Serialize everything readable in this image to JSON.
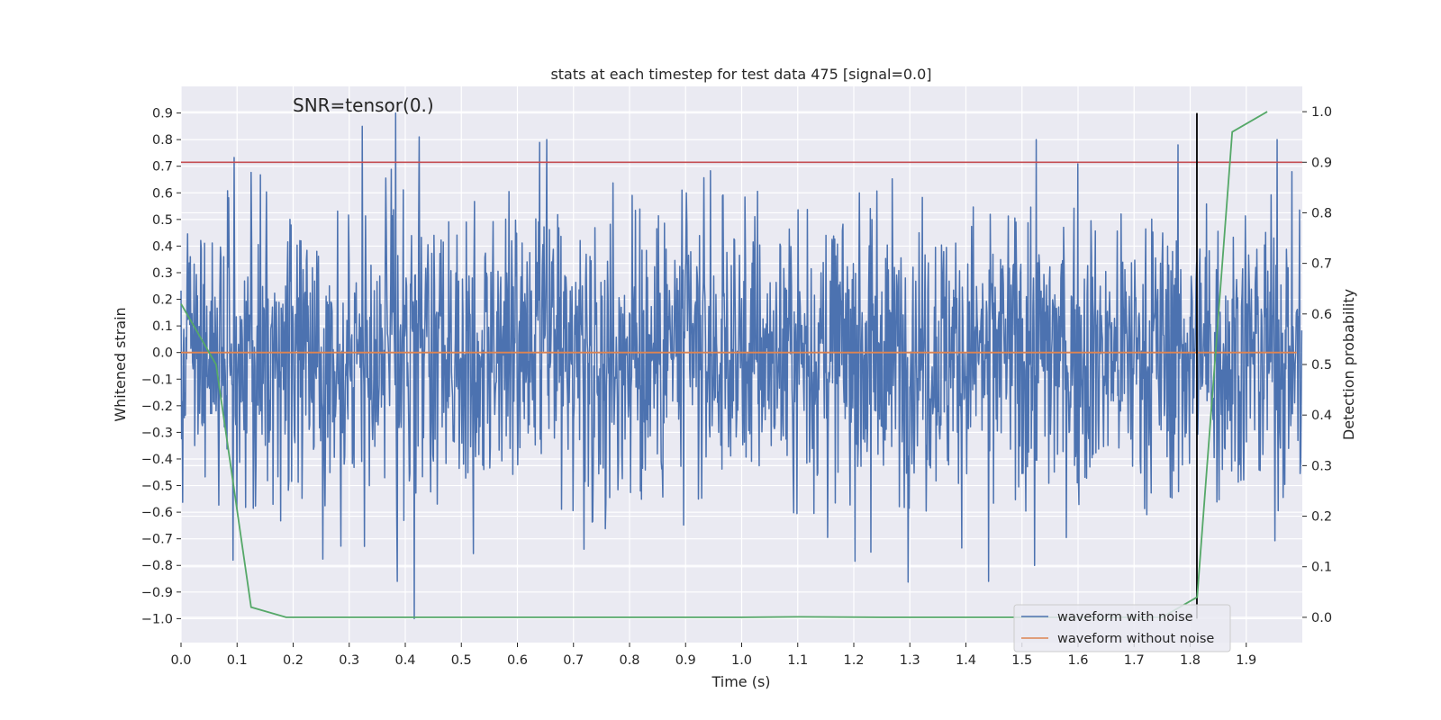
{
  "chart_data": {
    "type": "line",
    "title": "stats at each timestep for test data 475 [signal=0.0]",
    "xlabel": "Time (s)",
    "ylabel": "Whitened strain",
    "y2label": "Detection probability",
    "annotation": "SNR=tensor(0.)",
    "xlim": [
      0.0,
      2.0
    ],
    "ylim": [
      -1.09,
      1.0
    ],
    "y2lim": [
      -0.05,
      1.05
    ],
    "xticks": [
      "0.0",
      "0.1",
      "0.2",
      "0.3",
      "0.4",
      "0.5",
      "0.6",
      "0.7",
      "0.8",
      "0.9",
      "1.0",
      "1.1",
      "1.2",
      "1.3",
      "1.4",
      "1.5",
      "1.6",
      "1.7",
      "1.8",
      "1.9"
    ],
    "yticks": [
      "0.9",
      "0.8",
      "0.7",
      "0.6",
      "0.5",
      "0.4",
      "0.3",
      "0.2",
      "0.1",
      "0.0",
      "−0.1",
      "−0.2",
      "−0.3",
      "−0.4",
      "−0.5",
      "−0.6",
      "−0.7",
      "−0.8",
      "−0.9",
      "−1.0"
    ],
    "y2ticks": [
      "1.0",
      "0.9",
      "0.8",
      "0.7",
      "0.6",
      "0.5",
      "0.4",
      "0.3",
      "0.2",
      "0.1",
      "0.0"
    ],
    "grid": true,
    "legend_position": "lower-right",
    "threshold_line": {
      "y2": 0.9,
      "color": "#c44e52"
    },
    "marker_line": {
      "x": 1.812,
      "y_from": -1.0,
      "y_to": 0.9,
      "color": "#000000"
    },
    "series": [
      {
        "name": "waveform with noise",
        "color": "#4c72b0",
        "axis": "left",
        "n_points": 2048,
        "summary": {
          "mean": 0.0,
          "std": 0.27,
          "min": -1.0,
          "max": 0.9
        },
        "peaks": [
          {
            "x": 0.383,
            "y": 0.9
          },
          {
            "x": 0.323,
            "y": 0.85
          },
          {
            "x": 0.425,
            "y": 0.81
          },
          {
            "x": 0.652,
            "y": 0.8
          },
          {
            "x": 1.525,
            "y": 0.8
          },
          {
            "x": 1.955,
            "y": 0.8
          },
          {
            "x": 0.416,
            "y": -1.0
          },
          {
            "x": 0.386,
            "y": -0.86
          },
          {
            "x": 1.44,
            "y": -0.86
          },
          {
            "x": 1.522,
            "y": -0.8
          },
          {
            "x": 0.093,
            "y": -0.78
          },
          {
            "x": 1.23,
            "y": -0.75
          }
        ]
      },
      {
        "name": "waveform without noise",
        "color": "#dd8452",
        "axis": "left",
        "x": [
          0.0,
          1.99
        ],
        "y": [
          0.0,
          0.0
        ]
      },
      {
        "name": "detection probability",
        "color": "#55a868",
        "axis": "right",
        "x": [
          0.0,
          0.0625,
          0.125,
          0.1875,
          0.25,
          0.5,
          0.75,
          1.0,
          1.1,
          1.25,
          1.5,
          1.75,
          1.8125,
          1.875,
          1.9375
        ],
        "y": [
          0.62,
          0.5,
          0.02,
          0.0,
          0.0,
          0.0,
          0.0,
          0.0,
          0.001,
          0.0,
          0.0,
          0.0,
          0.04,
          0.96,
          1.0
        ]
      }
    ]
  }
}
